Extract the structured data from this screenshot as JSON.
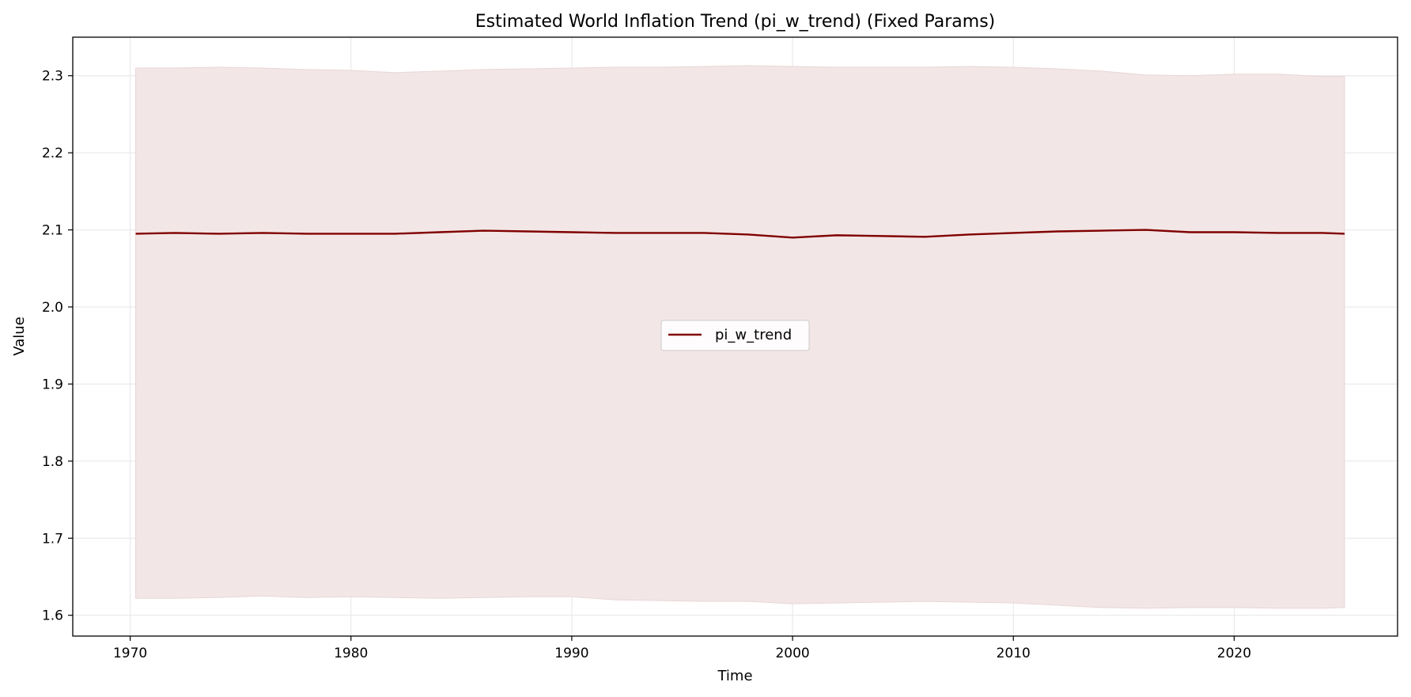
{
  "chart_data": {
    "type": "line",
    "title": "Estimated World Inflation Trend (pi_w_trend) (Fixed Params)",
    "xlabel": "Time",
    "ylabel": "Value",
    "xlim": [
      1967.4,
      2027.4
    ],
    "ylim": [
      1.573,
      2.35
    ],
    "x_ticks": [
      1970,
      1980,
      1990,
      2000,
      2010,
      2020
    ],
    "x_tick_labels": [
      "1970",
      "1980",
      "1990",
      "2000",
      "2010",
      "2020"
    ],
    "y_ticks": [
      1.6,
      1.7,
      1.8,
      1.9,
      2.0,
      2.1,
      2.2,
      2.3
    ],
    "y_tick_labels": [
      "1.6",
      "1.7",
      "1.8",
      "1.9",
      "2.0",
      "2.1",
      "2.2",
      "2.3"
    ],
    "grid": true,
    "legend_position": "center",
    "colors": {
      "line": "#800000",
      "band": "#f3e6e6",
      "band_edge": "#ead6d6",
      "grid": "#e6e6e6"
    },
    "series": [
      {
        "name": "pi_w_trend",
        "x": [
          1970.25,
          1972,
          1974,
          1976,
          1978,
          1980,
          1982,
          1984,
          1986,
          1988,
          1990,
          1992,
          1994,
          1996,
          1998,
          2000,
          2002,
          2004,
          2006,
          2008,
          2010,
          2012,
          2014,
          2016,
          2018,
          2020,
          2022,
          2024,
          2025
        ],
        "values": [
          2.095,
          2.096,
          2.095,
          2.096,
          2.095,
          2.095,
          2.095,
          2.097,
          2.099,
          2.098,
          2.097,
          2.096,
          2.096,
          2.096,
          2.094,
          2.09,
          2.093,
          2.092,
          2.091,
          2.094,
          2.096,
          2.098,
          2.099,
          2.1,
          2.097,
          2.097,
          2.096,
          2.096,
          2.095
        ]
      }
    ],
    "band": {
      "x": [
        1970.25,
        1972,
        1974,
        1976,
        1978,
        1980,
        1982,
        1984,
        1986,
        1988,
        1990,
        1992,
        1994,
        1996,
        1998,
        2000,
        2002,
        2004,
        2006,
        2008,
        2010,
        2012,
        2014,
        2016,
        2018,
        2020,
        2022,
        2024,
        2025
      ],
      "upper": [
        2.31,
        2.31,
        2.311,
        2.31,
        2.308,
        2.307,
        2.304,
        2.306,
        2.308,
        2.309,
        2.31,
        2.311,
        2.311,
        2.312,
        2.313,
        2.312,
        2.311,
        2.311,
        2.311,
        2.312,
        2.311,
        2.309,
        2.306,
        2.301,
        2.3,
        2.302,
        2.302,
        2.299,
        2.299
      ],
      "lower": [
        1.622,
        1.622,
        1.623,
        1.625,
        1.623,
        1.624,
        1.623,
        1.622,
        1.623,
        1.624,
        1.624,
        1.62,
        1.619,
        1.618,
        1.618,
        1.615,
        1.616,
        1.617,
        1.618,
        1.617,
        1.616,
        1.613,
        1.61,
        1.609,
        1.61,
        1.61,
        1.609,
        1.609,
        1.61
      ]
    }
  }
}
